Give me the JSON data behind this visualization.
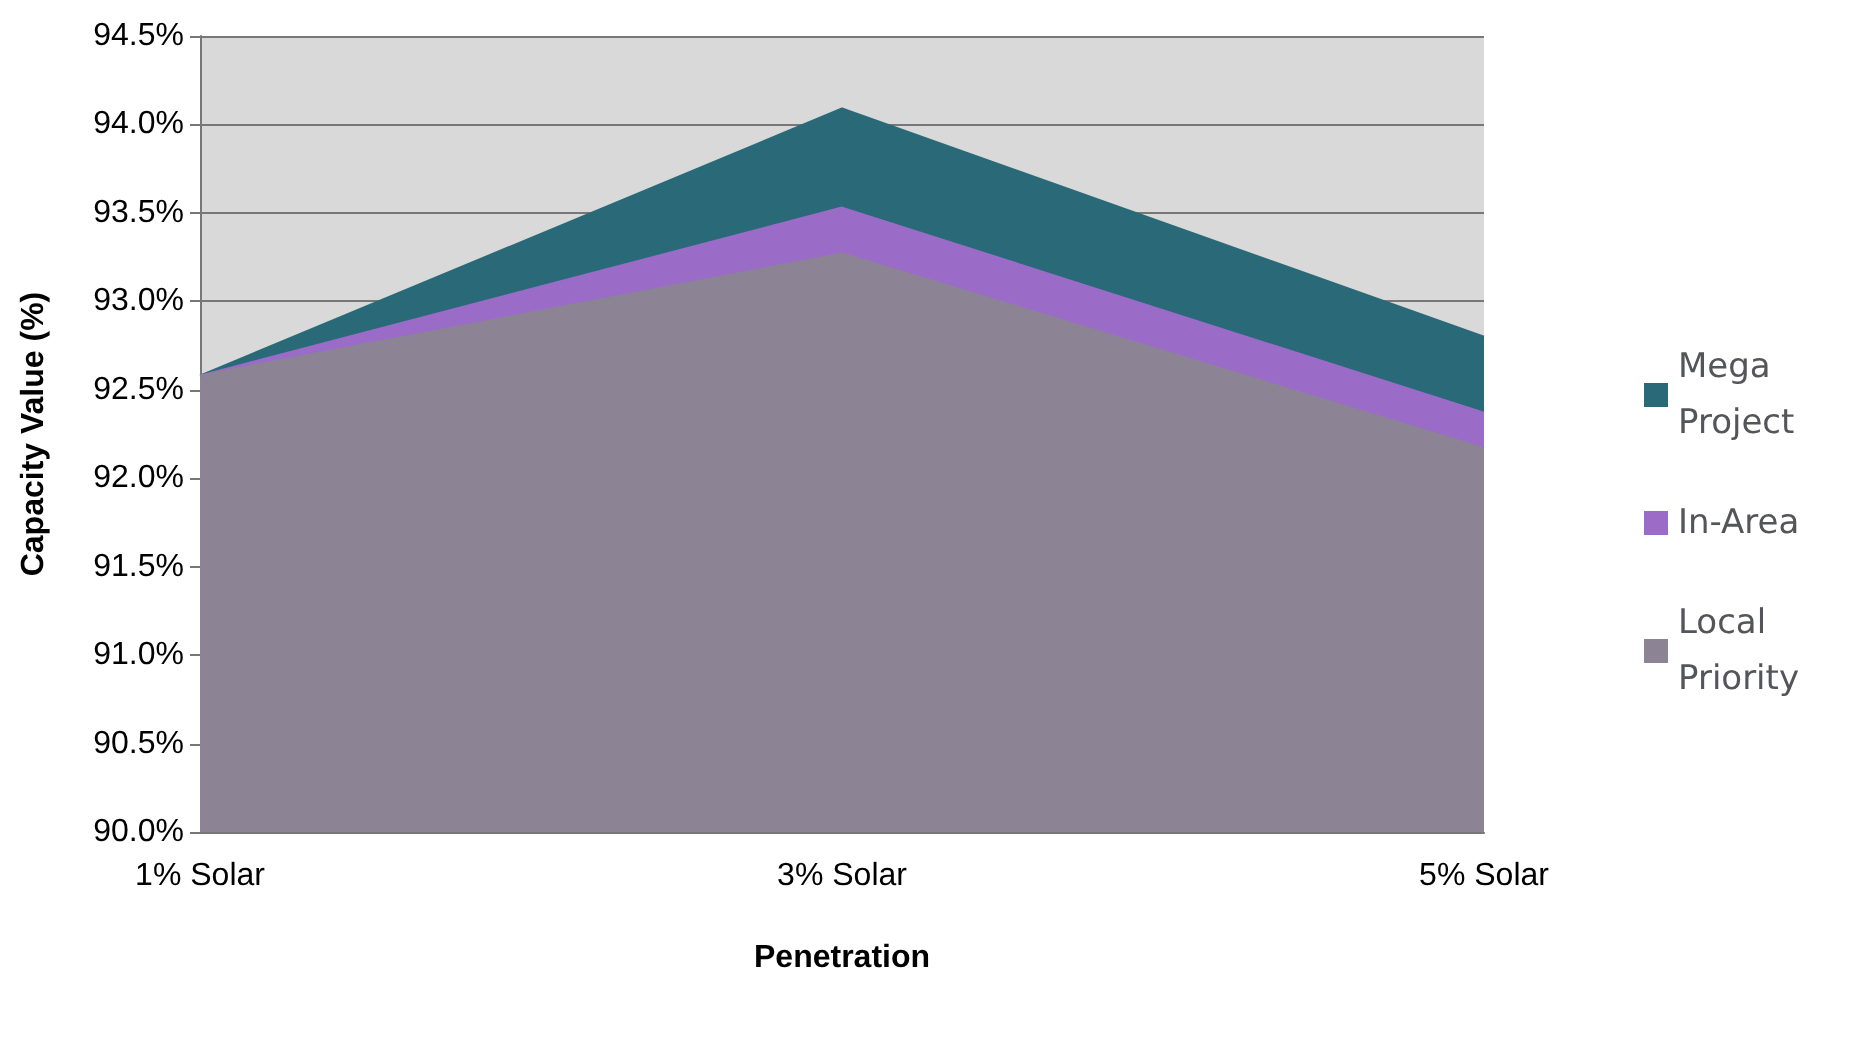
{
  "chart_data": {
    "type": "area",
    "xlabel": "Penetration",
    "ylabel": "Capacity Value (%)",
    "categories": [
      "1% Solar",
      "3% Solar",
      "5% Solar"
    ],
    "series": [
      {
        "name": "Mega Project",
        "color": "#2a6a78",
        "values": [
          92.58,
          94.09,
          92.8
        ]
      },
      {
        "name": "In-Area",
        "color": "#9a6cc8",
        "values": [
          92.58,
          93.53,
          92.37
        ]
      },
      {
        "name": "Local Priority",
        "color": "#8c8494",
        "values": [
          92.58,
          93.27,
          92.17
        ]
      }
    ],
    "ylim": [
      90.0,
      94.5
    ],
    "yticks": [
      {
        "value": 90.0,
        "label": "90.0%"
      },
      {
        "value": 90.5,
        "label": "90.5%"
      },
      {
        "value": 91.0,
        "label": "91.0%"
      },
      {
        "value": 91.5,
        "label": "91.5%"
      },
      {
        "value": 92.0,
        "label": "92.0%"
      },
      {
        "value": 92.5,
        "label": "92.5%"
      },
      {
        "value": 93.0,
        "label": "93.0%"
      },
      {
        "value": 93.5,
        "label": "93.5%"
      },
      {
        "value": 94.0,
        "label": "94.0%"
      },
      {
        "value": 94.5,
        "label": "94.5%"
      }
    ],
    "grid": "y",
    "legend": "right",
    "marker": "none"
  }
}
